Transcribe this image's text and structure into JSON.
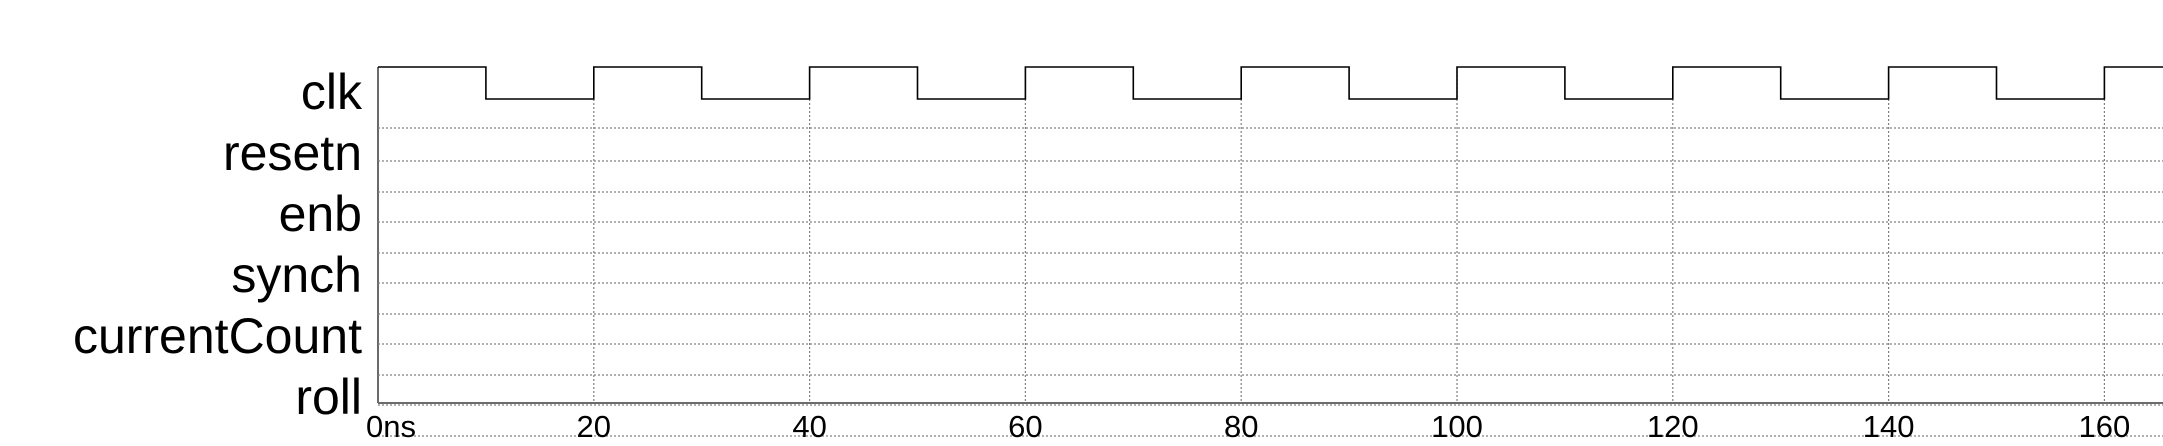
{
  "signals": [
    {
      "name": "clk",
      "type": "clock",
      "period": 20,
      "high_first": true
    },
    {
      "name": "resetn",
      "type": "undefined"
    },
    {
      "name": "enb",
      "type": "undefined"
    },
    {
      "name": "synch",
      "type": "undefined"
    },
    {
      "name": "currentCount",
      "type": "undefined"
    },
    {
      "name": "roll",
      "type": "undefined"
    }
  ],
  "time_axis": {
    "unit": "ns",
    "start": 0,
    "end": 180,
    "ticks": [
      {
        "t": 0,
        "label": "0ns"
      },
      {
        "t": 20,
        "label": "20"
      },
      {
        "t": 40,
        "label": "40"
      },
      {
        "t": 60,
        "label": "60"
      },
      {
        "t": 80,
        "label": "80"
      },
      {
        "t": 100,
        "label": "100"
      },
      {
        "t": 120,
        "label": "120"
      },
      {
        "t": 140,
        "label": "140"
      },
      {
        "t": 160,
        "label": "160"
      }
    ]
  }
}
